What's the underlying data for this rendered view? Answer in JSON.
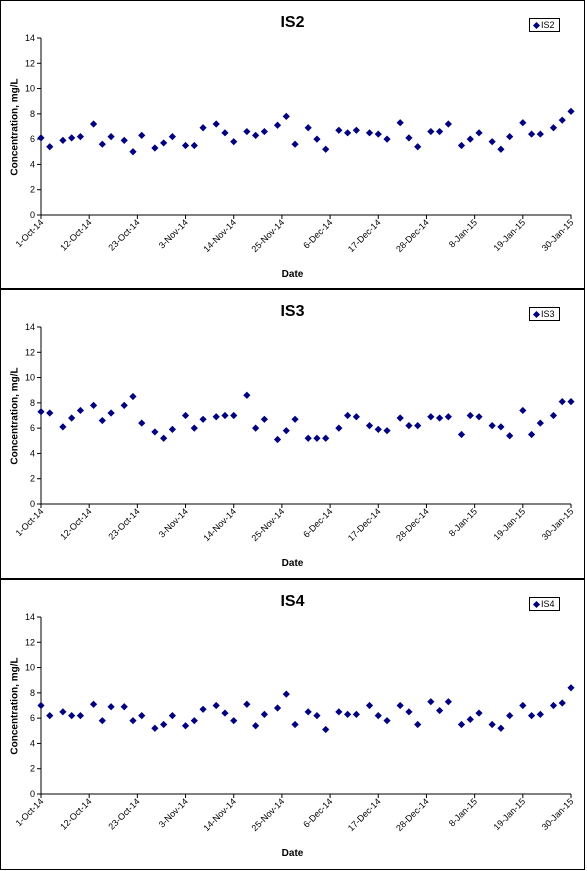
{
  "chart_data": [
    {
      "type": "scatter",
      "title": "IS2",
      "xlabel": "Date",
      "ylabel": "Concentration, mg/L",
      "ylim": [
        0,
        14
      ],
      "yticks": [
        "0",
        "2",
        "4",
        "6",
        "8",
        "10",
        "12",
        "14"
      ],
      "xticks": [
        "1-Oct-14",
        "12-Oct-14",
        "23-Oct-14",
        "3-Nov-14",
        "14-Nov-14",
        "25-Nov-14",
        "6-Dec-14",
        "17-Dec-14",
        "28-Dec-14",
        "8-Jan-15",
        "19-Jan-15",
        "30-Jan-15"
      ],
      "x_range": [
        "1-Oct-14",
        "30-Jan-15"
      ],
      "legend": "top-right",
      "marker_color": "#000080",
      "series": [
        {
          "name": "IS2",
          "x": [
            "1-Oct-14",
            "3-Oct-14",
            "6-Oct-14",
            "8-Oct-14",
            "10-Oct-14",
            "13-Oct-14",
            "15-Oct-14",
            "17-Oct-14",
            "20-Oct-14",
            "22-Oct-14",
            "24-Oct-14",
            "27-Oct-14",
            "29-Oct-14",
            "31-Oct-14",
            "3-Nov-14",
            "5-Nov-14",
            "7-Nov-14",
            "10-Nov-14",
            "12-Nov-14",
            "14-Nov-14",
            "17-Nov-14",
            "19-Nov-14",
            "21-Nov-14",
            "24-Nov-14",
            "26-Nov-14",
            "28-Nov-14",
            "1-Dec-14",
            "3-Dec-14",
            "5-Dec-14",
            "8-Dec-14",
            "10-Dec-14",
            "12-Dec-14",
            "15-Dec-14",
            "17-Dec-14",
            "19-Dec-14",
            "22-Dec-14",
            "24-Dec-14",
            "26-Dec-14",
            "29-Dec-14",
            "31-Dec-14",
            "2-Jan-15",
            "5-Jan-15",
            "7-Jan-15",
            "9-Jan-15",
            "12-Jan-15",
            "14-Jan-15",
            "16-Jan-15",
            "19-Jan-15",
            "21-Jan-15",
            "23-Jan-15",
            "26-Jan-15",
            "28-Jan-15",
            "30-Jan-15"
          ],
          "y": [
            6.1,
            5.4,
            5.9,
            6.1,
            6.2,
            7.2,
            5.6,
            6.2,
            5.9,
            5.0,
            6.3,
            5.3,
            5.7,
            6.2,
            5.5,
            5.5,
            6.9,
            7.2,
            6.5,
            5.8,
            6.6,
            6.3,
            6.6,
            7.1,
            7.8,
            5.6,
            6.9,
            6.0,
            5.2,
            6.7,
            6.5,
            6.7,
            6.5,
            6.4,
            6.0,
            7.3,
            6.1,
            5.4,
            6.6,
            6.6,
            7.2,
            5.5,
            6.0,
            6.5,
            5.8,
            5.2,
            6.2,
            7.3,
            6.4,
            6.4,
            6.9,
            7.5,
            8.2
          ]
        }
      ]
    },
    {
      "type": "scatter",
      "title": "IS3",
      "xlabel": "Date",
      "ylabel": "Concentration, mg/L",
      "ylim": [
        0,
        14
      ],
      "yticks": [
        "0",
        "2",
        "4",
        "6",
        "8",
        "10",
        "12",
        "14"
      ],
      "xticks": [
        "1-Oct-14",
        "12-Oct-14",
        "23-Oct-14",
        "3-Nov-14",
        "14-Nov-14",
        "25-Nov-14",
        "6-Dec-14",
        "17-Dec-14",
        "28-Dec-14",
        "8-Jan-15",
        "19-Jan-15",
        "30-Jan-15"
      ],
      "x_range": [
        "1-Oct-14",
        "30-Jan-15"
      ],
      "legend": "top-right",
      "marker_color": "#000080",
      "series": [
        {
          "name": "IS3",
          "x": [
            "1-Oct-14",
            "3-Oct-14",
            "6-Oct-14",
            "8-Oct-14",
            "10-Oct-14",
            "13-Oct-14",
            "15-Oct-14",
            "17-Oct-14",
            "20-Oct-14",
            "22-Oct-14",
            "24-Oct-14",
            "27-Oct-14",
            "29-Oct-14",
            "31-Oct-14",
            "3-Nov-14",
            "5-Nov-14",
            "7-Nov-14",
            "10-Nov-14",
            "12-Nov-14",
            "14-Nov-14",
            "17-Nov-14",
            "19-Nov-14",
            "21-Nov-14",
            "24-Nov-14",
            "26-Nov-14",
            "28-Nov-14",
            "1-Dec-14",
            "3-Dec-14",
            "5-Dec-14",
            "8-Dec-14",
            "10-Dec-14",
            "12-Dec-14",
            "15-Dec-14",
            "17-Dec-14",
            "19-Dec-14",
            "22-Dec-14",
            "24-Dec-14",
            "26-Dec-14",
            "29-Dec-14",
            "31-Dec-14",
            "2-Jan-15",
            "5-Jan-15",
            "7-Jan-15",
            "9-Jan-15",
            "12-Jan-15",
            "14-Jan-15",
            "16-Jan-15",
            "19-Jan-15",
            "21-Jan-15",
            "23-Jan-15",
            "26-Jan-15",
            "28-Jan-15",
            "30-Jan-15"
          ],
          "y": [
            7.3,
            7.2,
            6.1,
            6.8,
            7.4,
            7.8,
            6.6,
            7.2,
            7.8,
            8.5,
            6.4,
            5.7,
            5.2,
            5.9,
            7.0,
            6.0,
            6.7,
            6.9,
            7.0,
            7.0,
            8.6,
            6.0,
            6.7,
            5.1,
            5.8,
            6.7,
            5.2,
            5.2,
            5.2,
            6.0,
            7.0,
            6.9,
            6.2,
            5.9,
            5.8,
            6.8,
            6.2,
            6.2,
            6.9,
            6.8,
            6.9,
            5.5,
            7.0,
            6.9,
            6.2,
            6.1,
            5.4,
            7.4,
            5.5,
            6.4,
            7.0,
            8.1,
            8.1
          ]
        }
      ]
    },
    {
      "type": "scatter",
      "title": "IS4",
      "xlabel": "Date",
      "ylabel": "Concentration, mg/L",
      "ylim": [
        0,
        14
      ],
      "yticks": [
        "0",
        "2",
        "4",
        "6",
        "8",
        "10",
        "12",
        "14"
      ],
      "xticks": [
        "1-Oct-14",
        "12-Oct-14",
        "23-Oct-14",
        "3-Nov-14",
        "14-Nov-14",
        "25-Nov-14",
        "6-Dec-14",
        "17-Dec-14",
        "28-Dec-14",
        "8-Jan-15",
        "19-Jan-15",
        "30-Jan-15"
      ],
      "x_range": [
        "1-Oct-14",
        "30-Jan-15"
      ],
      "legend": "top-right",
      "marker_color": "#000080",
      "series": [
        {
          "name": "IS4",
          "x": [
            "1-Oct-14",
            "3-Oct-14",
            "6-Oct-14",
            "8-Oct-14",
            "10-Oct-14",
            "13-Oct-14",
            "15-Oct-14",
            "17-Oct-14",
            "20-Oct-14",
            "22-Oct-14",
            "24-Oct-14",
            "27-Oct-14",
            "29-Oct-14",
            "31-Oct-14",
            "3-Nov-14",
            "5-Nov-14",
            "7-Nov-14",
            "10-Nov-14",
            "12-Nov-14",
            "14-Nov-14",
            "17-Nov-14",
            "19-Nov-14",
            "21-Nov-14",
            "24-Nov-14",
            "26-Nov-14",
            "28-Nov-14",
            "1-Dec-14",
            "3-Dec-14",
            "5-Dec-14",
            "8-Dec-14",
            "10-Dec-14",
            "12-Dec-14",
            "15-Dec-14",
            "17-Dec-14",
            "19-Dec-14",
            "22-Dec-14",
            "24-Dec-14",
            "26-Dec-14",
            "29-Dec-14",
            "31-Dec-14",
            "2-Jan-15",
            "5-Jan-15",
            "7-Jan-15",
            "9-Jan-15",
            "12-Jan-15",
            "14-Jan-15",
            "16-Jan-15",
            "19-Jan-15",
            "21-Jan-15",
            "23-Jan-15",
            "26-Jan-15",
            "28-Jan-15",
            "30-Jan-15"
          ],
          "y": [
            7.0,
            6.2,
            6.5,
            6.2,
            6.2,
            7.1,
            5.8,
            6.9,
            6.9,
            5.8,
            6.2,
            5.2,
            5.5,
            6.2,
            5.4,
            5.8,
            6.7,
            7.0,
            6.4,
            5.8,
            7.1,
            5.4,
            6.3,
            6.8,
            7.9,
            5.5,
            6.5,
            6.2,
            5.1,
            6.5,
            6.3,
            6.3,
            7.0,
            6.2,
            5.8,
            7.0,
            6.5,
            5.5,
            7.3,
            6.6,
            7.3,
            5.5,
            5.9,
            6.4,
            5.5,
            5.2,
            6.2,
            7.0,
            6.2,
            6.3,
            7.0,
            7.2,
            8.4
          ]
        }
      ]
    }
  ]
}
